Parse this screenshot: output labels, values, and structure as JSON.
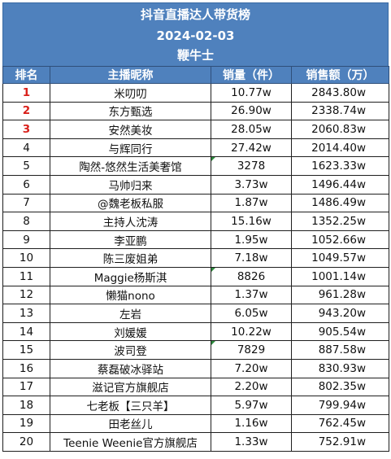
{
  "header": {
    "title": "抖音直播达人带货榜",
    "date": "2024-02-03",
    "subtitle": "鞭牛士"
  },
  "columns": {
    "rank": "排名",
    "name": "主播昵称",
    "qty": "销量（件）",
    "amount": "销售额（万）"
  },
  "rows": [
    {
      "rank": "1",
      "name": "米叨叨",
      "qty": "10.77w",
      "amount": "2843.80w"
    },
    {
      "rank": "2",
      "name": "东方甄选",
      "qty": "26.90w",
      "amount": "2338.74w"
    },
    {
      "rank": "3",
      "name": "安然美妆",
      "qty": "28.05w",
      "amount": "2060.83w"
    },
    {
      "rank": "4",
      "name": "与辉同行",
      "qty": "27.42w",
      "amount": "2014.40w"
    },
    {
      "rank": "5",
      "name": "陶然-悠然生活美奢馆",
      "qty": "3278",
      "amount": "1623.33w"
    },
    {
      "rank": "6",
      "name": "马帅归来",
      "qty": "3.73w",
      "amount": "1496.44w"
    },
    {
      "rank": "7",
      "name": "@魏老板私服",
      "qty": "1.87w",
      "amount": "1486.49w"
    },
    {
      "rank": "8",
      "name": "主持人沈涛",
      "qty": "15.16w",
      "amount": "1352.25w"
    },
    {
      "rank": "9",
      "name": "李亚鹏",
      "qty": "1.95w",
      "amount": "1052.66w"
    },
    {
      "rank": "10",
      "name": "陈三废姐弟",
      "qty": "7.18w",
      "amount": "1049.57w"
    },
    {
      "rank": "11",
      "name": "Maggie杨斯淇",
      "qty": "8826",
      "amount": "1001.14w"
    },
    {
      "rank": "12",
      "name": "懒猫nono",
      "qty": "1.37w",
      "amount": "961.28w"
    },
    {
      "rank": "13",
      "name": "左岩",
      "qty": "6.05w",
      "amount": "943.20w"
    },
    {
      "rank": "14",
      "name": "刘媛媛",
      "qty": "10.22w",
      "amount": "905.54w"
    },
    {
      "rank": "15",
      "name": "波司登",
      "qty": "7829",
      "amount": "887.58w"
    },
    {
      "rank": "16",
      "name": "蔡磊破冰驿站",
      "qty": "7.20w",
      "amount": "830.93w"
    },
    {
      "rank": "17",
      "name": "滋记官方旗舰店",
      "qty": "2.20w",
      "amount": "802.35w"
    },
    {
      "rank": "18",
      "name": "七老板【三只羊】",
      "qty": "5.97w",
      "amount": "799.94w"
    },
    {
      "rank": "19",
      "name": "田老丝儿",
      "qty": "1.16w",
      "amount": "762.45w"
    },
    {
      "rank": "20",
      "name": "Teenie Weenie官方旗舰店",
      "qty": "1.33w",
      "amount": "752.91w"
    }
  ],
  "colors": {
    "header_bg": "#4f81bd",
    "header_text": "#ffffff",
    "top_rank_text": "#d9201a",
    "cell_marker": "#2e8b3e"
  }
}
